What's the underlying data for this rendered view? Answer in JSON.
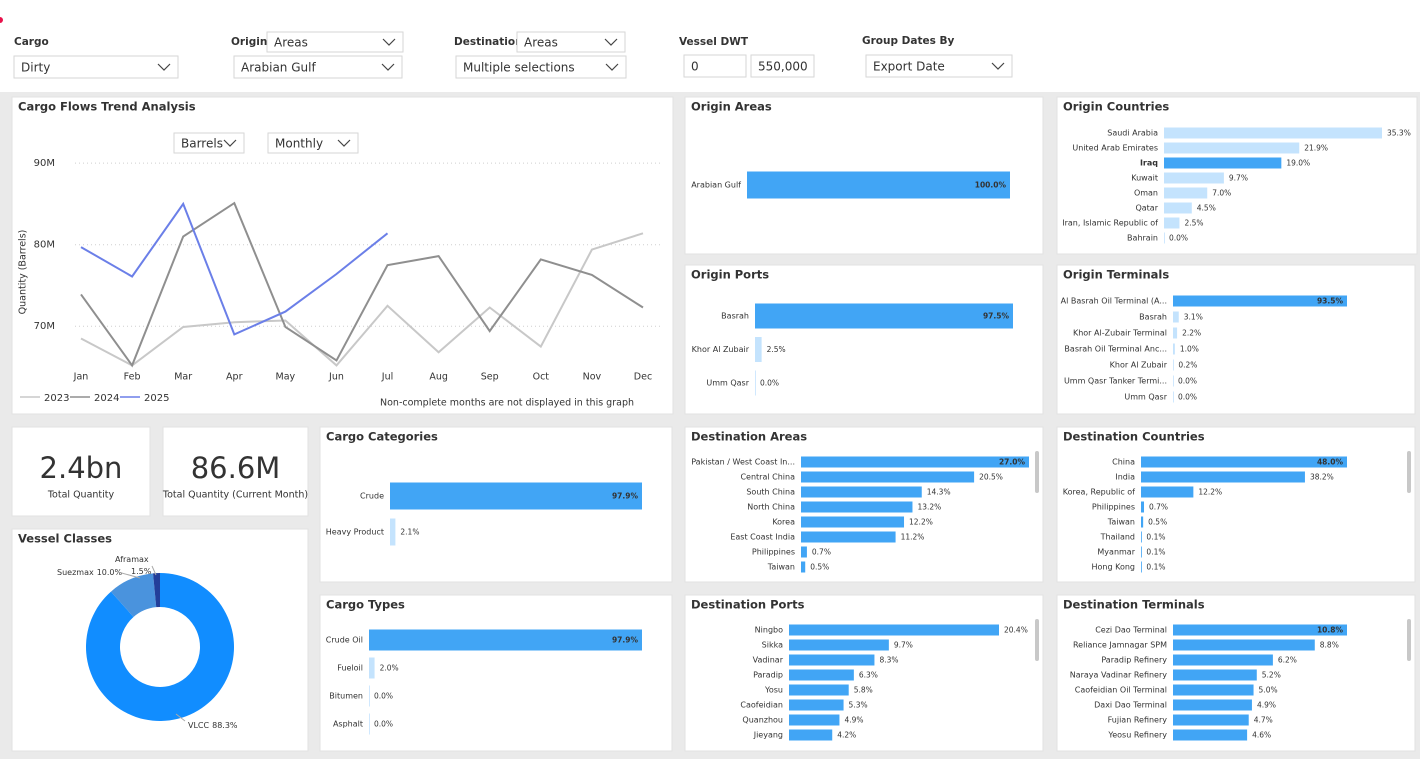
{
  "filters": [
    {
      "label": "Cargo",
      "value": "Dirty"
    },
    {
      "label": "Origin",
      "mode": "Areas",
      "value": "Arabian Gulf"
    },
    {
      "label": "Destination",
      "mode": "Areas",
      "value": "Multiple selections"
    },
    {
      "label": "Vessel DWT",
      "min": "0",
      "max": "550,000"
    },
    {
      "label": "Group Dates By",
      "value": "Export Date"
    }
  ],
  "trend": {
    "type": "line",
    "title": "Cargo Flows Trend Analysis",
    "unit_select": "Barrels",
    "period_select": "Monthly",
    "y_label": "Quantity (Barrels)",
    "categories": [
      "Jan",
      "Feb",
      "Mar",
      "Apr",
      "May",
      "Jun",
      "Jul",
      "Aug",
      "Sep",
      "Oct",
      "Nov",
      "Dec"
    ],
    "series": [
      {
        "name": "2023",
        "color": "#c8c8c8",
        "values": [
          68.5,
          65.2,
          69.9,
          70.5,
          70.7,
          65.2,
          72.5,
          66.8,
          72.3,
          67.5,
          79.4,
          81.4
        ]
      },
      {
        "name": "2024",
        "color": "#8f8f8f",
        "values": [
          73.9,
          65.2,
          81.0,
          85.1,
          69.9,
          65.8,
          77.5,
          78.6,
          69.4,
          78.2,
          76.3,
          72.3
        ]
      },
      {
        "name": "2025",
        "color": "#6b7fe8",
        "values": [
          79.7,
          76.1,
          85.0,
          69.0,
          71.8,
          76.4,
          81.4,
          null,
          null,
          null,
          null,
          null
        ]
      }
    ],
    "ylim": [
      65,
      91
    ],
    "yticks": [
      {
        "value": 70,
        "label": "70M"
      },
      {
        "value": 80,
        "label": "80M"
      },
      {
        "value": 90,
        "label": "90M"
      }
    ],
    "grid": true,
    "note": "Non-complete months are not displayed in this graph"
  },
  "kpis": [
    {
      "value": "2.4bn",
      "label": "Total Quantity"
    },
    {
      "value": "86.6M",
      "label": "Total Quantity (Current Month)"
    }
  ],
  "panels": [
    {
      "type": "bar",
      "title": "Origin Areas",
      "max_label_inside": true,
      "items": [
        {
          "label": "Arabian Gulf",
          "value": 100.0,
          "value_label": "100.0%",
          "color": "#41a5f5"
        }
      ]
    },
    {
      "type": "bar",
      "title": "Origin Countries",
      "max_label_inside": false,
      "items": [
        {
          "label": "Saudi Arabia",
          "value": 35.3,
          "value_label": "35.3%",
          "color": "#c4e3fd"
        },
        {
          "label": "United Arab Emirates",
          "value": 21.9,
          "value_label": "21.9%",
          "color": "#c4e3fd"
        },
        {
          "label": "Iraq",
          "value": 19.0,
          "value_label": "19.0%",
          "color": "#41a5f5"
        },
        {
          "label": "Kuwait",
          "value": 9.7,
          "value_label": "9.7%",
          "color": "#c4e3fd"
        },
        {
          "label": "Oman",
          "value": 7.0,
          "value_label": "7.0%",
          "color": "#c4e3fd"
        },
        {
          "label": "Qatar",
          "value": 4.5,
          "value_label": "4.5%",
          "color": "#c4e3fd"
        },
        {
          "label": "Iran, Islamic Republic of",
          "value": 2.5,
          "value_label": "2.5%",
          "color": "#c4e3fd"
        },
        {
          "label": "Bahrain",
          "value": 0.0,
          "value_label": "0.0%",
          "color": "#c4e3fd"
        }
      ]
    },
    {
      "type": "bar",
      "title": "Origin Ports",
      "max_label_inside": true,
      "items": [
        {
          "label": "Basrah",
          "value": 97.5,
          "value_label": "97.5%",
          "color": "#41a5f5"
        },
        {
          "label": "Khor Al Zubair",
          "value": 2.5,
          "value_label": "2.5%",
          "color": "#c4e3fd"
        },
        {
          "label": "Umm Qasr",
          "value": 0.0,
          "value_label": "0.0%",
          "color": "#c4e3fd"
        }
      ]
    },
    {
      "type": "bar",
      "title": "Origin Terminals",
      "max_label_inside": true,
      "items": [
        {
          "label": "Al Basrah Oil Terminal (A...",
          "value": 93.5,
          "value_label": "93.5%",
          "color": "#41a5f5"
        },
        {
          "label": "Basrah",
          "value": 3.1,
          "value_label": "3.1%",
          "color": "#c4e3fd"
        },
        {
          "label": "Khor Al-Zubair Terminal",
          "value": 2.2,
          "value_label": "2.2%",
          "color": "#c4e3fd"
        },
        {
          "label": "Basrah Oil Terminal Anc...",
          "value": 1.0,
          "value_label": "1.0%",
          "color": "#c4e3fd"
        },
        {
          "label": "Khor Al Zubair",
          "value": 0.2,
          "value_label": "0.2%",
          "color": "#c4e3fd"
        },
        {
          "label": "Umm Qasr Tanker Termi...",
          "value": 0.0,
          "value_label": "0.0%",
          "color": "#c4e3fd"
        },
        {
          "label": "Umm Qasr",
          "value": 0.0,
          "value_label": "0.0%",
          "color": "#c4e3fd"
        }
      ]
    },
    {
      "type": "bar",
      "title": "Cargo Categories",
      "max_label_inside": true,
      "items": [
        {
          "label": "Crude",
          "value": 97.9,
          "value_label": "97.9%",
          "color": "#41a5f5"
        },
        {
          "label": "Heavy Product",
          "value": 2.1,
          "value_label": "2.1%",
          "color": "#c4e3fd"
        }
      ]
    },
    {
      "type": "bar",
      "title": "Cargo Types",
      "max_label_inside": true,
      "items": [
        {
          "label": "Crude Oil",
          "value": 97.9,
          "value_label": "97.9%",
          "color": "#41a5f5"
        },
        {
          "label": "Fueloil",
          "value": 2.0,
          "value_label": "2.0%",
          "color": "#c4e3fd"
        },
        {
          "label": "Bitumen",
          "value": 0.0,
          "value_label": "0.0%",
          "color": "#c4e3fd"
        },
        {
          "label": "Asphalt",
          "value": 0.0,
          "value_label": "0.0%",
          "color": "#c4e3fd"
        }
      ]
    },
    {
      "type": "bar",
      "title": "Destination Areas",
      "max_label_inside": true,
      "items": [
        {
          "label": "Pakistan / West Coast In...",
          "value": 27.0,
          "value_label": "27.0%",
          "color": "#41a5f5"
        },
        {
          "label": "Central China",
          "value": 20.5,
          "value_label": "20.5%",
          "color": "#41a5f5"
        },
        {
          "label": "South China",
          "value": 14.3,
          "value_label": "14.3%",
          "color": "#41a5f5"
        },
        {
          "label": "North China",
          "value": 13.2,
          "value_label": "13.2%",
          "color": "#41a5f5"
        },
        {
          "label": "Korea",
          "value": 12.2,
          "value_label": "12.2%",
          "color": "#41a5f5"
        },
        {
          "label": "East Coast India",
          "value": 11.2,
          "value_label": "11.2%",
          "color": "#41a5f5"
        },
        {
          "label": "Philippines",
          "value": 0.7,
          "value_label": "0.7%",
          "color": "#41a5f5"
        },
        {
          "label": "Taiwan",
          "value": 0.5,
          "value_label": "0.5%",
          "color": "#41a5f5"
        }
      ]
    },
    {
      "type": "bar",
      "title": "Destination Countries",
      "max_label_inside": true,
      "items": [
        {
          "label": "China",
          "value": 48.0,
          "value_label": "48.0%",
          "color": "#41a5f5"
        },
        {
          "label": "India",
          "value": 38.2,
          "value_label": "38.2%",
          "color": "#41a5f5"
        },
        {
          "label": "Korea, Republic of",
          "value": 12.2,
          "value_label": "12.2%",
          "color": "#41a5f5"
        },
        {
          "label": "Philippines",
          "value": 0.7,
          "value_label": "0.7%",
          "color": "#41a5f5"
        },
        {
          "label": "Taiwan",
          "value": 0.5,
          "value_label": "0.5%",
          "color": "#41a5f5"
        },
        {
          "label": "Thailand",
          "value": 0.1,
          "value_label": "0.1%",
          "color": "#41a5f5"
        },
        {
          "label": "Myanmar",
          "value": 0.1,
          "value_label": "0.1%",
          "color": "#41a5f5"
        },
        {
          "label": "Hong Kong",
          "value": 0.1,
          "value_label": "0.1%",
          "color": "#41a5f5"
        }
      ]
    },
    {
      "type": "bar",
      "title": "Destination Ports",
      "max_label_inside": false,
      "items": [
        {
          "label": "Ningbo",
          "value": 20.4,
          "value_label": "20.4%",
          "color": "#41a5f5"
        },
        {
          "label": "Sikka",
          "value": 9.7,
          "value_label": "9.7%",
          "color": "#41a5f5"
        },
        {
          "label": "Vadinar",
          "value": 8.3,
          "value_label": "8.3%",
          "color": "#41a5f5"
        },
        {
          "label": "Paradip",
          "value": 6.3,
          "value_label": "6.3%",
          "color": "#41a5f5"
        },
        {
          "label": "Yosu",
          "value": 5.8,
          "value_label": "5.8%",
          "color": "#41a5f5"
        },
        {
          "label": "Caofeidian",
          "value": 5.3,
          "value_label": "5.3%",
          "color": "#41a5f5"
        },
        {
          "label": "Quanzhou",
          "value": 4.9,
          "value_label": "4.9%",
          "color": "#41a5f5"
        },
        {
          "label": "Jieyang",
          "value": 4.2,
          "value_label": "4.2%",
          "color": "#41a5f5"
        }
      ]
    },
    {
      "type": "bar",
      "title": "Destination Terminals",
      "max_label_inside": true,
      "items": [
        {
          "label": "Cezi Dao Terminal",
          "value": 10.8,
          "value_label": "10.8%",
          "color": "#41a5f5"
        },
        {
          "label": "Reliance Jamnagar SPM",
          "value": 8.8,
          "value_label": "8.8%",
          "color": "#41a5f5"
        },
        {
          "label": "Paradip Refinery",
          "value": 6.2,
          "value_label": "6.2%",
          "color": "#41a5f5"
        },
        {
          "label": "Naraya Vadinar Refinery",
          "value": 5.2,
          "value_label": "5.2%",
          "color": "#41a5f5"
        },
        {
          "label": "Caofeidian Oil Terminal",
          "value": 5.0,
          "value_label": "5.0%",
          "color": "#41a5f5"
        },
        {
          "label": "Daxi Dao Terminal",
          "value": 4.9,
          "value_label": "4.9%",
          "color": "#41a5f5"
        },
        {
          "label": "Fujian Refinery",
          "value": 4.7,
          "value_label": "4.7%",
          "color": "#41a5f5"
        },
        {
          "label": "Yeosu Refinery",
          "value": 4.6,
          "value_label": "4.6%",
          "color": "#41a5f5"
        }
      ]
    }
  ],
  "vessel_classes": {
    "type": "donut",
    "title": "Vessel Classes",
    "items": [
      {
        "label": "VLCC",
        "value": 88.3,
        "value_label": "88.3%",
        "color": "#118dff"
      },
      {
        "label": "Suezmax",
        "value": 10.0,
        "value_label": "10.0%",
        "color": "#4a93dd"
      },
      {
        "label": "Aframax",
        "value": 1.5,
        "value_label": "1.5%",
        "color": "#233f9a"
      }
    ]
  }
}
